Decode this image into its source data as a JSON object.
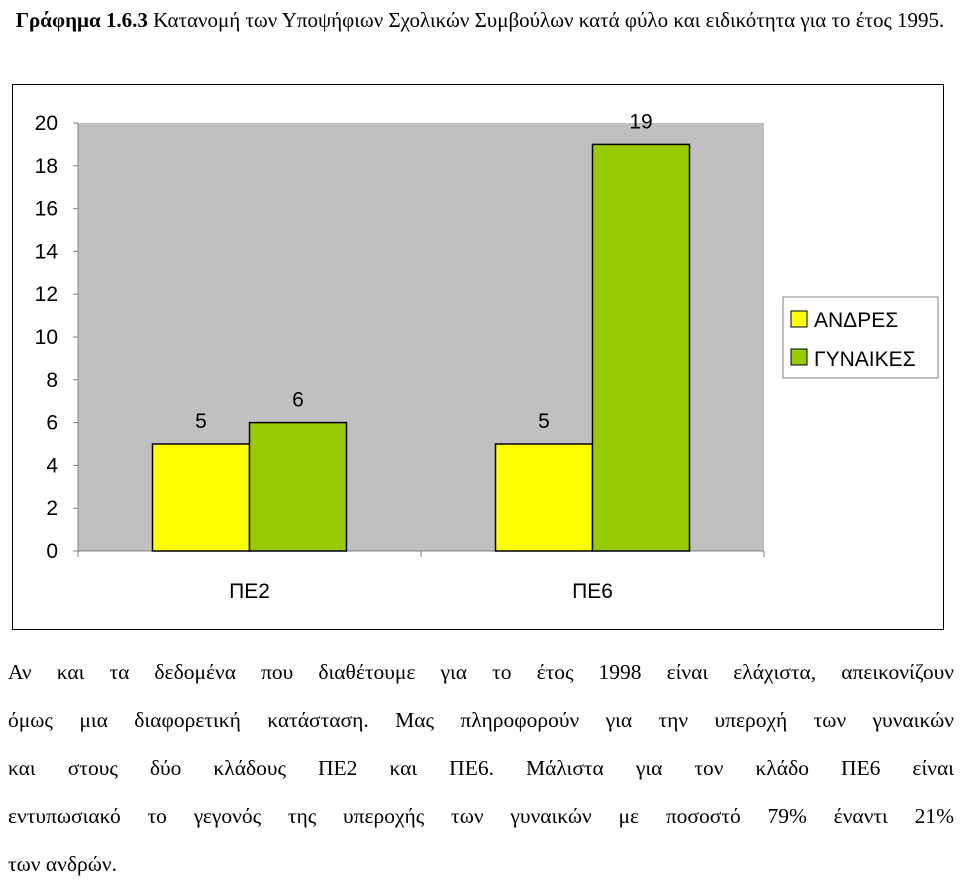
{
  "caption": {
    "label": "Γράφημα 1.6.3",
    "text": "Κατανομή των Υποψήφιων Σχολικών Συμβούλων κατά φύλο και ειδικότητα για το έτος 1995."
  },
  "chart_data": {
    "type": "bar",
    "categories": [
      "ΠΕ2",
      "ΠΕ6"
    ],
    "series": [
      {
        "name": "ΑΝΔΡΕΣ",
        "values": [
          5,
          5
        ],
        "color": "#ffff00"
      },
      {
        "name": "ΓΥΝΑΙΚΕΣ",
        "values": [
          6,
          19
        ],
        "color": "#99cc00"
      }
    ],
    "ylim": [
      0,
      20
    ],
    "yticks": [
      "0",
      "2",
      "4",
      "6",
      "8",
      "10",
      "12",
      "14",
      "16",
      "18",
      "20"
    ],
    "plot_background": "#c0c0c0",
    "grid": false,
    "legend_position": "right"
  },
  "paragraph": {
    "lines": [
      "Αν και τα δεδομένα που διαθέτουμε για το έτος 1998 είναι ελάχιστα, απεικονίζουν",
      "όμως μια διαφορετική κατάσταση. Μας πληροφορούν για την υπεροχή των γυναικών",
      "και στους δύο κλάδους ΠΕ2 και ΠΕ6. Μάλιστα για τον κλάδο ΠΕ6 είναι",
      "εντυπωσιακό το γεγονός της υπεροχής των γυναικών με ποσοστό 79% έναντι 21%",
      "των ανδρών."
    ]
  }
}
